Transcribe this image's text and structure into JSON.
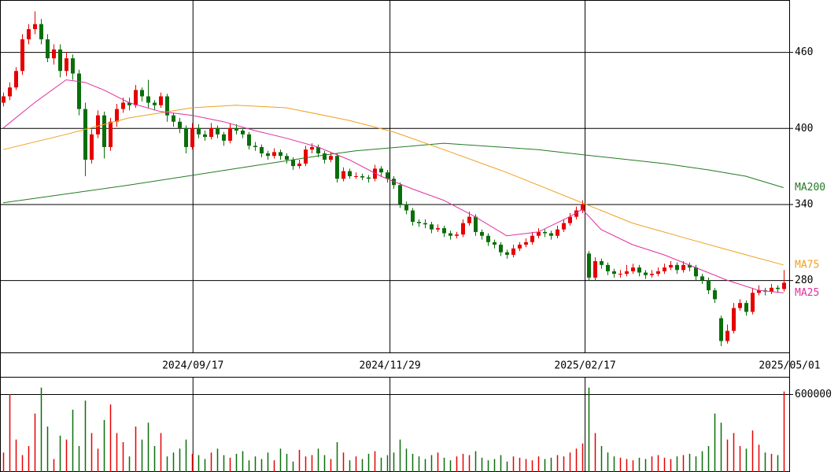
{
  "chart_data": {
    "type": "candlestick",
    "up_color": "#e60000",
    "down_color": "#0a6e0a",
    "xlim": [
      -0.5,
      124.9
    ],
    "ylim": [
      223,
      501
    ],
    "yticks": [
      280,
      340,
      400,
      460
    ],
    "xticks": [
      {
        "value": 30.1,
        "label": "2024/09/17"
      },
      {
        "value": 61.4,
        "label": "2024/11/29"
      },
      {
        "value": 92.4,
        "label": "2025/02/17"
      },
      {
        "value": 124.9,
        "label": "2025/05/01"
      }
    ],
    "volume_ylim": [
      0,
      727000
    ],
    "volume_yticks": [
      600000
    ],
    "ohlc": [
      [
        420,
        428,
        417,
        425
      ],
      [
        425,
        436,
        422,
        432
      ],
      [
        432,
        448,
        430,
        445
      ],
      [
        445,
        474,
        442,
        470
      ],
      [
        470,
        482,
        466,
        478
      ],
      [
        478,
        492,
        474,
        482
      ],
      [
        482,
        486,
        466,
        470
      ],
      [
        470,
        474,
        452,
        455
      ],
      [
        455,
        466,
        450,
        462
      ],
      [
        462,
        466,
        440,
        445
      ],
      [
        445,
        460,
        441,
        455
      ],
      [
        455,
        458,
        438,
        443
      ],
      [
        443,
        446,
        410,
        415
      ],
      [
        415,
        420,
        362,
        375
      ],
      [
        375,
        399,
        372,
        395
      ],
      [
        395,
        414,
        392,
        410
      ],
      [
        410,
        413,
        376,
        385
      ],
      [
        385,
        408,
        382,
        405
      ],
      [
        405,
        419,
        401,
        415
      ],
      [
        415,
        424,
        412,
        420
      ],
      [
        420,
        424,
        414,
        418
      ],
      [
        418,
        434,
        416,
        430
      ],
      [
        430,
        432,
        421,
        425
      ],
      [
        425,
        438,
        416,
        420
      ],
      [
        420,
        422,
        414,
        418
      ],
      [
        418,
        428,
        416,
        425
      ],
      [
        425,
        427,
        405,
        410
      ],
      [
        410,
        412,
        401,
        405
      ],
      [
        405,
        408,
        396,
        400
      ],
      [
        400,
        402,
        380,
        385
      ],
      [
        385,
        404,
        383,
        400
      ],
      [
        400,
        403,
        392,
        395
      ],
      [
        395,
        398,
        390,
        393
      ],
      [
        393,
        404,
        391,
        400
      ],
      [
        400,
        402,
        392,
        395
      ],
      [
        395,
        397,
        386,
        390
      ],
      [
        390,
        404,
        388,
        400
      ],
      [
        400,
        403,
        395,
        398
      ],
      [
        398,
        400,
        392,
        395
      ],
      [
        395,
        397,
        383,
        386
      ],
      [
        386,
        389,
        382,
        385
      ],
      [
        385,
        387,
        377,
        380
      ],
      [
        380,
        382,
        375,
        378
      ],
      [
        378,
        384,
        376,
        381
      ],
      [
        381,
        383,
        375,
        378
      ],
      [
        378,
        380,
        372,
        375
      ],
      [
        375,
        377,
        367,
        370
      ],
      [
        370,
        375,
        368,
        372
      ],
      [
        372,
        386,
        370,
        383
      ],
      [
        383,
        388,
        380,
        385
      ],
      [
        385,
        387,
        377,
        380
      ],
      [
        380,
        382,
        372,
        375
      ],
      [
        375,
        381,
        373,
        378
      ],
      [
        378,
        380,
        357,
        360
      ],
      [
        360,
        369,
        358,
        366
      ],
      [
        366,
        368,
        360,
        362
      ],
      [
        362,
        365,
        360,
        362
      ],
      [
        362,
        364,
        359,
        361
      ],
      [
        361,
        363,
        357,
        360
      ],
      [
        360,
        371,
        358,
        368
      ],
      [
        368,
        370,
        362,
        365
      ],
      [
        365,
        367,
        357,
        360
      ],
      [
        360,
        362,
        352,
        355
      ],
      [
        355,
        357,
        337,
        340
      ],
      [
        340,
        342,
        332,
        335
      ],
      [
        335,
        337,
        323,
        326
      ],
      [
        326,
        328,
        322,
        325
      ],
      [
        325,
        328,
        321,
        324
      ],
      [
        324,
        326,
        317,
        320
      ],
      [
        320,
        324,
        318,
        321
      ],
      [
        321,
        323,
        314,
        317
      ],
      [
        317,
        319,
        312,
        315
      ],
      [
        315,
        318,
        313,
        316
      ],
      [
        316,
        328,
        314,
        325
      ],
      [
        325,
        334,
        323,
        330
      ],
      [
        330,
        332,
        315,
        318
      ],
      [
        318,
        320,
        312,
        315
      ],
      [
        315,
        317,
        307,
        310
      ],
      [
        310,
        312,
        305,
        308
      ],
      [
        308,
        310,
        299,
        302
      ],
      [
        302,
        304,
        297,
        300
      ],
      [
        300,
        308,
        298,
        305
      ],
      [
        305,
        310,
        303,
        308
      ],
      [
        308,
        313,
        306,
        310
      ],
      [
        310,
        318,
        308,
        315
      ],
      [
        315,
        321,
        313,
        318
      ],
      [
        318,
        320,
        314,
        317
      ],
      [
        317,
        319,
        312,
        315
      ],
      [
        315,
        323,
        313,
        320
      ],
      [
        320,
        328,
        318,
        325
      ],
      [
        325,
        333,
        323,
        330
      ],
      [
        330,
        338,
        328,
        335
      ],
      [
        335,
        343,
        333,
        340
      ],
      [
        301,
        303,
        280,
        282
      ],
      [
        282,
        298,
        280,
        295
      ],
      [
        295,
        297,
        289,
        292
      ],
      [
        292,
        294,
        284,
        287
      ],
      [
        287,
        289,
        282,
        285
      ],
      [
        285,
        288,
        282,
        285
      ],
      [
        285,
        292,
        283,
        287
      ],
      [
        287,
        293,
        285,
        290
      ],
      [
        290,
        292,
        283,
        286
      ],
      [
        286,
        288,
        281,
        284
      ],
      [
        284,
        288,
        282,
        285
      ],
      [
        285,
        290,
        283,
        287
      ],
      [
        287,
        293,
        285,
        290
      ],
      [
        290,
        295,
        288,
        292
      ],
      [
        292,
        294,
        285,
        288
      ],
      [
        288,
        295,
        286,
        292
      ],
      [
        292,
        294,
        287,
        290
      ],
      [
        290,
        292,
        280,
        283
      ],
      [
        283,
        285,
        277,
        280
      ],
      [
        280,
        282,
        269,
        272
      ],
      [
        272,
        274,
        262,
        265
      ],
      [
        250,
        252,
        228,
        232
      ],
      [
        232,
        245,
        230,
        240
      ],
      [
        240,
        262,
        238,
        258
      ],
      [
        258,
        265,
        256,
        262
      ],
      [
        262,
        264,
        252,
        255
      ],
      [
        255,
        274,
        253,
        270
      ],
      [
        270,
        276,
        268,
        272
      ],
      [
        272,
        274,
        268,
        271
      ],
      [
        271,
        277,
        269,
        274
      ],
      [
        274,
        276,
        270,
        273
      ],
      [
        273,
        288,
        271,
        278
      ]
    ],
    "volume": [
      150000,
      600000,
      250000,
      130000,
      200000,
      450000,
      650000,
      350000,
      100000,
      280000,
      250000,
      480000,
      200000,
      550000,
      300000,
      180000,
      400000,
      520000,
      300000,
      230000,
      120000,
      350000,
      250000,
      380000,
      200000,
      300000,
      120000,
      150000,
      180000,
      250000,
      140000,
      130000,
      100000,
      150000,
      180000,
      130000,
      110000,
      140000,
      160000,
      90000,
      120000,
      100000,
      150000,
      90000,
      180000,
      140000,
      80000,
      170000,
      120000,
      130000,
      180000,
      130000,
      100000,
      230000,
      150000,
      90000,
      120000,
      100000,
      140000,
      160000,
      110000,
      130000,
      150000,
      250000,
      180000,
      140000,
      120000,
      100000,
      130000,
      150000,
      110000,
      90000,
      120000,
      140000,
      130000,
      160000,
      110000,
      90000,
      100000,
      130000,
      80000,
      120000,
      110000,
      100000,
      90000,
      120000,
      100000,
      110000,
      130000,
      120000,
      150000,
      180000,
      220000,
      650000,
      300000,
      200000,
      150000,
      120000,
      110000,
      100000,
      90000,
      110000,
      100000,
      120000,
      130000,
      110000,
      100000,
      120000,
      130000,
      140000,
      120000,
      160000,
      200000,
      450000,
      380000,
      250000,
      300000,
      200000,
      180000,
      320000,
      210000,
      150000,
      140000,
      130000,
      620000
    ],
    "series": [
      {
        "name": "MA200",
        "color": "#237a23",
        "x": [
          0,
          20,
          37,
          50,
          56,
          70,
          85,
          92,
          105,
          112,
          118,
          124
        ],
        "values": [
          341,
          355,
          368,
          378,
          382,
          388,
          383,
          379,
          372,
          367,
          362,
          353
        ]
      },
      {
        "name": "MA75",
        "color": "#f0a020",
        "x": [
          0,
          10,
          20,
          30,
          37,
          45,
          55,
          62,
          70,
          80,
          92,
          100,
          110,
          118,
          124
        ],
        "values": [
          383,
          395,
          408,
          416,
          418,
          416,
          406,
          397,
          383,
          365,
          341,
          325,
          311,
          300,
          292
        ]
      },
      {
        "name": "MA25",
        "color": "#e0309e",
        "x": [
          0,
          5,
          10,
          13,
          16,
          20,
          25,
          30,
          35,
          40,
          45,
          50,
          55,
          60,
          65,
          70,
          75,
          80,
          85,
          90,
          92,
          95,
          100,
          105,
          110,
          115,
          120,
          124
        ],
        "values": [
          400,
          420,
          438,
          436,
          430,
          420,
          413,
          410,
          405,
          398,
          392,
          385,
          375,
          362,
          352,
          343,
          330,
          315,
          318,
          330,
          336,
          320,
          308,
          300,
          290,
          280,
          272,
          270
        ]
      }
    ]
  }
}
